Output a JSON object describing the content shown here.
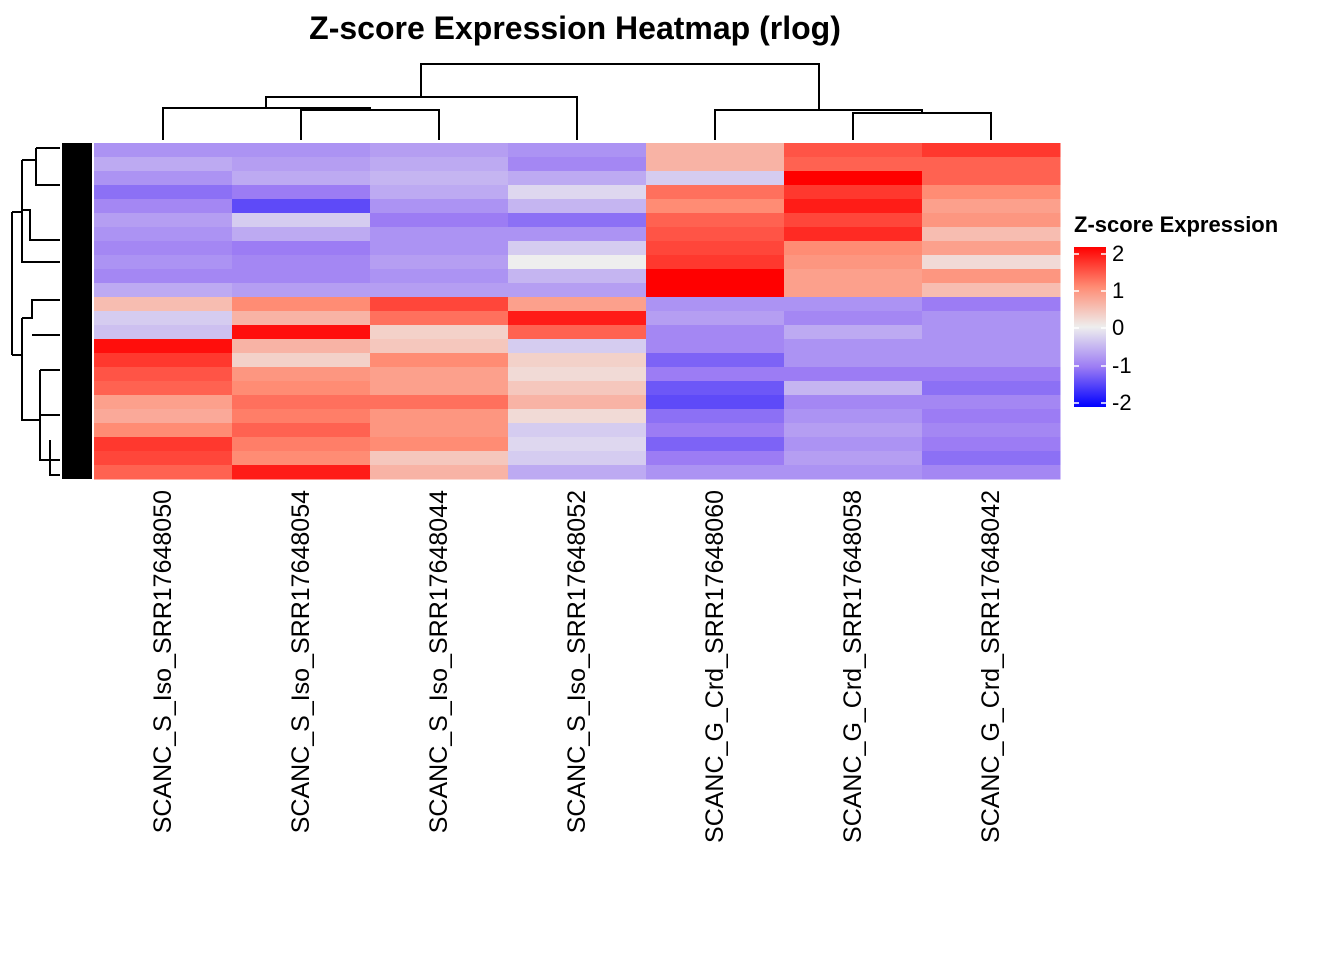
{
  "chart_data": {
    "type": "heatmap",
    "title": "Z-score Expression Heatmap (rlog)",
    "columns": [
      "SCANC_S_Iso_SRR17648050",
      "SCANC_S_Iso_SRR17648054",
      "SCANC_S_Iso_SRR17648044",
      "SCANC_S_Iso_SRR17648052",
      "SCANC_G_Crd_SRR17648060",
      "SCANC_G_Crd_SRR17648058",
      "SCANC_G_Crd_SRR17648042"
    ],
    "row_dendrogram": true,
    "column_dendrogram": true,
    "values": [
      [
        -0.8,
        -0.8,
        -0.7,
        -0.8,
        0.6,
        1.4,
        1.6
      ],
      [
        -0.6,
        -0.7,
        -0.6,
        -0.9,
        0.6,
        1.3,
        1.3
      ],
      [
        -0.8,
        -0.6,
        -0.5,
        -0.6,
        -0.3,
        2.0,
        1.3
      ],
      [
        -1.1,
        -1.0,
        -0.6,
        -0.2,
        1.2,
        1.6,
        1.0
      ],
      [
        -0.9,
        -1.4,
        -0.8,
        -0.5,
        1.0,
        1.8,
        0.8
      ],
      [
        -0.7,
        -0.3,
        -1.0,
        -1.1,
        1.3,
        1.5,
        0.9
      ],
      [
        -0.8,
        -0.6,
        -0.8,
        -0.8,
        1.4,
        1.7,
        0.5
      ],
      [
        -0.9,
        -1.0,
        -0.8,
        -0.3,
        1.5,
        1.0,
        0.8
      ],
      [
        -0.8,
        -0.9,
        -0.7,
        0.0,
        1.6,
        0.9,
        0.2
      ],
      [
        -0.9,
        -0.9,
        -0.8,
        -0.5,
        2.0,
        0.8,
        0.9
      ],
      [
        -0.6,
        -0.7,
        -0.7,
        -0.7,
        2.0,
        0.8,
        0.5
      ],
      [
        0.5,
        1.0,
        1.5,
        0.8,
        -0.8,
        -0.8,
        -1.0
      ],
      [
        -0.3,
        0.6,
        1.2,
        1.8,
        -0.7,
        -0.9,
        -0.8
      ],
      [
        -0.4,
        1.9,
        0.3,
        1.3,
        -0.9,
        -0.6,
        -0.8
      ],
      [
        1.9,
        0.6,
        0.4,
        -0.3,
        -0.9,
        -0.8,
        -0.8
      ],
      [
        1.6,
        0.3,
        1.0,
        0.3,
        -1.2,
        -0.8,
        -0.8
      ],
      [
        1.4,
        0.9,
        0.8,
        0.2,
        -1.0,
        -1.0,
        -1.0
      ],
      [
        1.3,
        1.0,
        0.8,
        0.4,
        -1.3,
        -0.5,
        -1.1
      ],
      [
        0.8,
        1.2,
        1.2,
        0.6,
        -1.4,
        -0.9,
        -0.9
      ],
      [
        0.7,
        1.1,
        0.9,
        0.2,
        -1.1,
        -0.8,
        -1.0
      ],
      [
        1.0,
        1.3,
        0.9,
        -0.3,
        -1.0,
        -0.7,
        -0.9
      ],
      [
        1.6,
        1.1,
        1.0,
        -0.2,
        -1.2,
        -0.8,
        -1.0
      ],
      [
        1.5,
        1.0,
        0.4,
        -0.3,
        -1.0,
        -0.7,
        -1.1
      ],
      [
        1.3,
        1.8,
        0.6,
        -0.6,
        -0.8,
        -0.8,
        -0.9
      ]
    ],
    "legend": {
      "title": "Z-score Expression",
      "ticks": [
        "2",
        "1",
        "0",
        "-1",
        "-2"
      ],
      "range": [
        -2,
        2
      ],
      "colors": {
        "low": "#0000FF",
        "mid": "#EEEEEE",
        "high": "#FF0000"
      }
    }
  }
}
